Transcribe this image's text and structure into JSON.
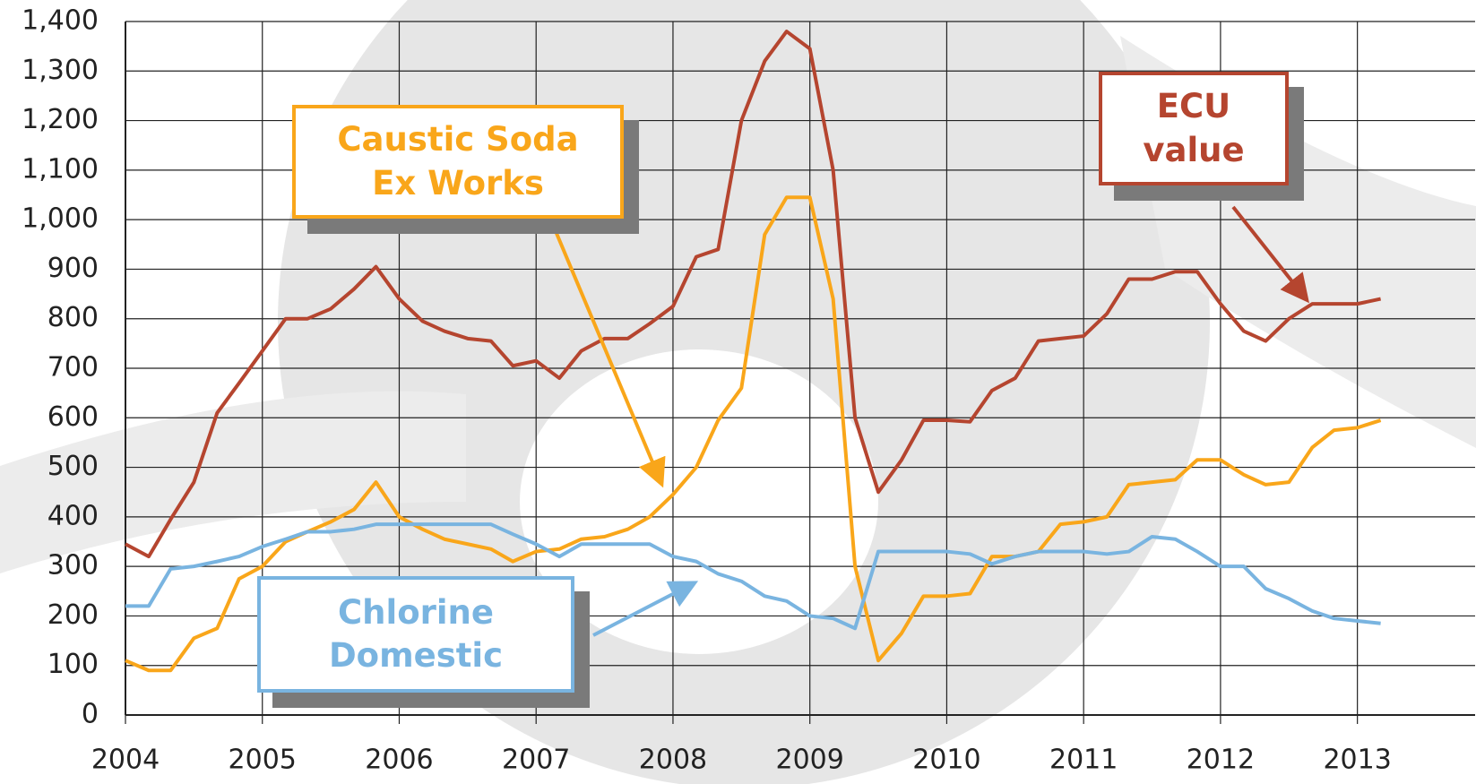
{
  "chart_data": {
    "type": "line",
    "x": [
      2004,
      2004.17,
      2004.33,
      2004.5,
      2004.67,
      2004.83,
      2005,
      2005.17,
      2005.33,
      2005.5,
      2005.67,
      2005.83,
      2006,
      2006.17,
      2006.33,
      2006.5,
      2006.67,
      2006.83,
      2007,
      2007.17,
      2007.33,
      2007.5,
      2007.67,
      2007.83,
      2008,
      2008.17,
      2008.33,
      2008.5,
      2008.67,
      2008.83,
      2009,
      2009.17,
      2009.33,
      2009.5,
      2009.67,
      2009.83,
      2010,
      2010.17,
      2010.33,
      2010.5,
      2010.67,
      2010.83,
      2011,
      2011.17,
      2011.33,
      2011.5,
      2011.67,
      2011.83,
      2012,
      2012.17,
      2012.33,
      2012.5,
      2012.67,
      2012.83,
      2013,
      2013.17
    ],
    "series": [
      {
        "name": "ECU value",
        "color": "#b5452f",
        "values": [
          345,
          320,
          395,
          470,
          610,
          670,
          735,
          800,
          800,
          820,
          860,
          905,
          840,
          795,
          775,
          760,
          755,
          705,
          715,
          680,
          735,
          760,
          760,
          790,
          825,
          925,
          940,
          1200,
          1320,
          1380,
          1345,
          1100,
          600,
          450,
          515,
          595,
          595,
          592,
          655,
          680,
          755,
          760,
          765,
          810,
          880,
          880,
          895,
          895,
          830,
          775,
          755,
          800,
          830,
          830,
          830,
          840
        ]
      },
      {
        "name": "Caustic Soda Ex Works",
        "color": "#f9a61a",
        "values": [
          110,
          90,
          90,
          155,
          175,
          275,
          300,
          350,
          370,
          390,
          415,
          470,
          400,
          375,
          355,
          345,
          335,
          310,
          330,
          335,
          355,
          360,
          375,
          400,
          445,
          500,
          595,
          660,
          970,
          1045,
          1045,
          840,
          300,
          110,
          165,
          240,
          240,
          245,
          320,
          320,
          330,
          385,
          390,
          400,
          465,
          470,
          475,
          515,
          515,
          485,
          465,
          470,
          540,
          575,
          580,
          595
        ]
      },
      {
        "name": "Chlorine Domestic",
        "color": "#79b4e0",
        "values": [
          220,
          220,
          295,
          300,
          310,
          320,
          340,
          355,
          370,
          370,
          375,
          385,
          385,
          385,
          385,
          385,
          385,
          365,
          345,
          320,
          345,
          345,
          345,
          345,
          320,
          310,
          285,
          270,
          240,
          230,
          200,
          195,
          175,
          330,
          330,
          330,
          330,
          325,
          305,
          320,
          330,
          330,
          330,
          325,
          330,
          360,
          355,
          330,
          300,
          300,
          255,
          235,
          210,
          195,
          190,
          185
        ]
      }
    ],
    "xlim": [
      2004,
      2013.86
    ],
    "xticks": [
      2004,
      2005,
      2006,
      2007,
      2008,
      2009,
      2010,
      2011,
      2012,
      2013
    ],
    "ylim": [
      0,
      1400
    ],
    "yticks": [
      0,
      100,
      200,
      300,
      400,
      500,
      600,
      700,
      800,
      900,
      {
        "value": 1000,
        "label": "1,000"
      },
      {
        "value": 1100,
        "label": "1,100"
      },
      {
        "value": 1200,
        "label": "1,200"
      },
      {
        "value": 1300,
        "label": "1,300"
      },
      {
        "value": 1400,
        "label": "1,400"
      }
    ],
    "grid": true
  }
}
